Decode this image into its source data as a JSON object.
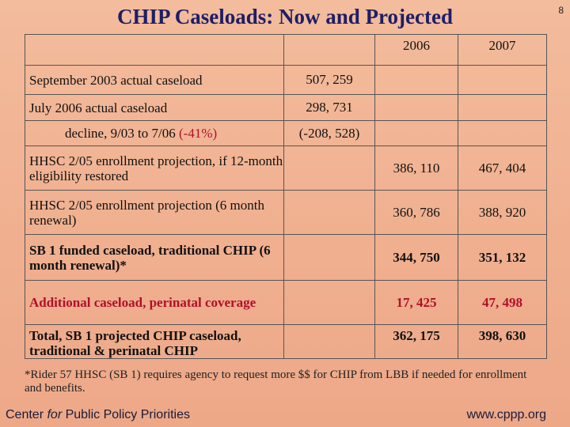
{
  "slide_number": "8",
  "title": "CHIP Caseloads: Now and Projected",
  "table": {
    "headers": [
      "",
      "",
      "2006",
      "2007"
    ],
    "rows": [
      {
        "label": "September 2003 actual caseload",
        "mid": "507, 259",
        "y2006": "",
        "y2007": ""
      },
      {
        "label": "July 2006 actual caseload",
        "mid": "298, 731",
        "y2006": "",
        "y2007": ""
      },
      {
        "label_prefix": "decline, 9/03 to 7/06 ",
        "label_red": "(-41%)",
        "mid": "(-208, 528)",
        "y2006": "",
        "y2007": ""
      },
      {
        "label": "HHSC 2/05 enrollment projection, if 12-month eligibility restored",
        "mid": "",
        "y2006": "386, 110",
        "y2007": "467, 404"
      },
      {
        "label": "HHSC 2/05 enrollment projection (6 month renewal)",
        "mid": "",
        "y2006": "360, 786",
        "y2007": "388, 920"
      },
      {
        "label": "SB 1 funded caseload, traditional CHIP (6 month renewal)*",
        "mid": "",
        "y2006": "344, 750",
        "y2007": "351, 132"
      },
      {
        "label": "Additional caseload, perinatal coverage",
        "mid": "",
        "y2006": "17, 425",
        "y2007": "47, 498"
      },
      {
        "label": "Total, SB 1 projected CHIP caseload, traditional & perinatal CHIP",
        "mid": "",
        "y2006": "362, 175",
        "y2007": "398, 630"
      }
    ]
  },
  "footnote": "*Rider 57 HHSC (SB 1) requires agency to request more $$ for CHIP from LBB if needed for enrollment and benefits.",
  "footer": {
    "left_a": "Center ",
    "left_b": "for",
    "left_c": " Public Policy Priorities",
    "right": "www.cppp.org"
  },
  "colors": {
    "background": "#f0b090",
    "title": "#1e1e66",
    "accent_red": "#b0102a"
  }
}
